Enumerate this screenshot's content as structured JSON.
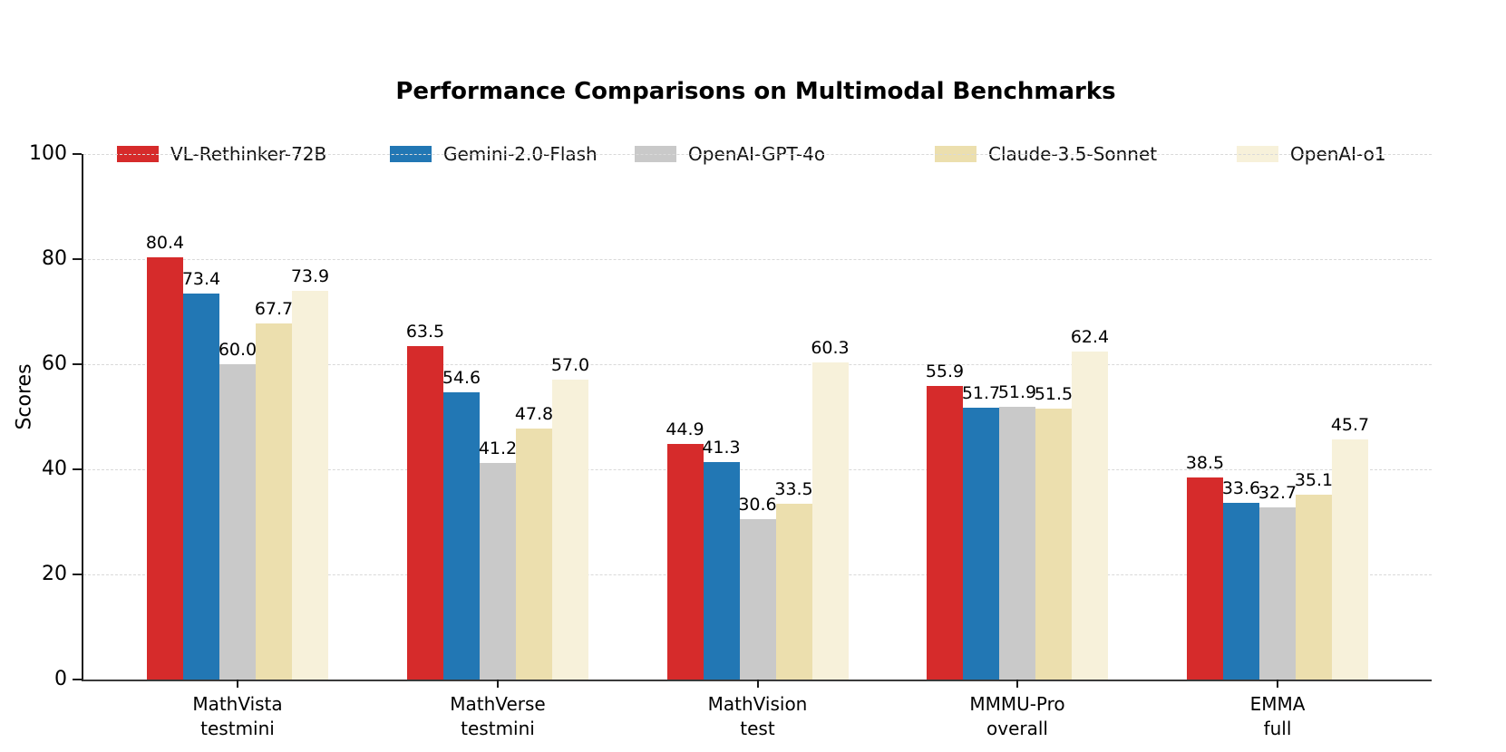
{
  "figure": {
    "title": "Performance Comparisons on Multimodal Benchmarks",
    "ylabel": "Scores"
  },
  "chart_data": {
    "type": "bar",
    "title": "Performance Comparisons on Multimodal Benchmarks",
    "xlabel": "",
    "ylabel": "Scores",
    "ylim": [
      0,
      100
    ],
    "yticks": [
      0,
      20,
      40,
      60,
      80,
      100
    ],
    "grid": "horizontal dashed gridlines at y ticks",
    "legend_position": "top horizontal row above plot",
    "categories": [
      "MathVista\ntestmini",
      "MathVerse\ntestmini",
      "MathVision\ntest",
      "MMMU-Pro\noverall",
      "EMMA\nfull"
    ],
    "series": [
      {
        "name": "VL-Rethinker-72B",
        "color": "#d62b2b",
        "values": [
          80.4,
          63.5,
          44.9,
          55.9,
          38.5
        ],
        "labels": [
          "80.4",
          "63.5",
          "44.9",
          "55.9",
          "38.5"
        ]
      },
      {
        "name": "Gemini-2.0-Flash",
        "color": "#2277b4",
        "values": [
          73.4,
          54.6,
          41.3,
          51.7,
          33.6
        ],
        "labels": [
          "73.4",
          "54.6",
          "41.3",
          "51.7",
          "33.6"
        ]
      },
      {
        "name": "OpenAI-GPT-4o",
        "color": "#c9c9c9",
        "values": [
          60.0,
          41.2,
          30.6,
          51.9,
          32.7
        ],
        "labels": [
          "60.0",
          "41.2",
          "30.6",
          "51.9",
          "32.7"
        ]
      },
      {
        "name": "Claude-3.5-Sonnet",
        "color": "#ecdfae",
        "values": [
          67.7,
          47.8,
          33.5,
          51.5,
          35.1
        ],
        "labels": [
          "67.7",
          "47.8",
          "33.5",
          "51.5",
          "35.1"
        ]
      },
      {
        "name": "OpenAI-o1",
        "color": "#f7f1da",
        "values": [
          73.9,
          57.0,
          60.3,
          62.4,
          45.7
        ],
        "labels": [
          "73.9",
          "57.0",
          "60.3",
          "62.4",
          "45.7"
        ]
      }
    ]
  }
}
